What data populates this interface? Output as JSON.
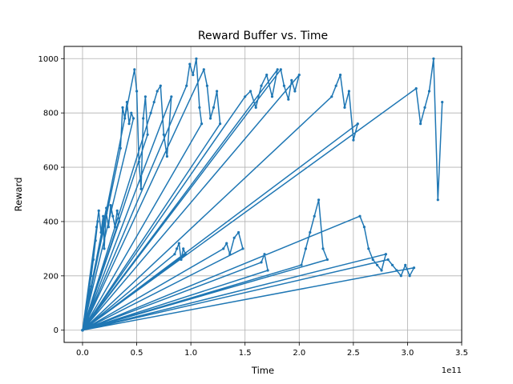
{
  "chart_data": {
    "type": "line",
    "title": "Reward Buffer vs. Time",
    "xlabel": "Time",
    "ylabel": "Reward",
    "x_offset_label": "1e11",
    "xlim": [
      -0.17,
      3.5
    ],
    "ylim": [
      -45,
      1045
    ],
    "xticks": [
      0.0,
      0.5,
      1.0,
      1.5,
      2.0,
      2.5,
      3.0,
      3.5
    ],
    "xtick_labels": [
      "0.0",
      "0.5",
      "1.0",
      "1.5",
      "2.0",
      "2.5",
      "3.0",
      "3.5"
    ],
    "yticks": [
      0,
      200,
      400,
      600,
      800,
      1000
    ],
    "ytick_labels": [
      "0",
      "200",
      "400",
      "600",
      "800",
      "1000"
    ],
    "grid": true,
    "line_color": "#1f77b4",
    "series": [
      {
        "x": [
          0.0,
          0.02,
          0.03,
          0.05,
          0.06,
          0.08,
          0.0,
          0.08,
          0.1,
          0.12,
          0.14,
          0.0,
          0.13,
          0.15,
          0.17,
          0.19,
          0.2,
          0.22,
          0.0,
          0.22,
          0.24,
          0.26,
          0.28,
          0.3,
          0.32,
          0.34,
          0.0,
          0.35,
          0.37,
          0.39,
          0.41,
          0.43,
          0.45,
          0.47,
          0.0,
          0.48,
          0.5,
          0.52,
          0.54,
          0.56,
          0.58,
          0.6,
          0.0,
          0.63,
          0.66,
          0.69,
          0.72,
          0.75,
          0.78,
          0.82,
          0.0,
          0.85,
          0.87,
          0.89,
          0.91,
          0.93,
          0.95,
          0.0,
          0.96,
          0.99,
          1.02,
          1.05,
          1.08,
          1.1,
          0.0,
          1.12,
          1.15,
          1.18,
          1.21,
          1.24,
          1.27,
          0.0,
          1.3,
          1.33,
          1.36,
          1.4,
          1.44,
          1.48,
          0.0,
          1.5,
          1.55,
          1.6,
          1.65,
          1.7,
          1.75,
          1.8,
          0.0,
          1.65,
          1.68,
          1.71,
          0.0,
          1.83,
          1.86,
          1.9,
          1.93,
          1.96,
          2.0,
          0.0,
          2.02,
          2.06,
          2.1,
          2.14,
          2.18,
          2.22,
          2.26,
          0.0,
          2.3,
          2.34,
          2.38,
          2.42,
          2.46,
          2.5,
          2.54,
          0.0,
          2.56,
          2.6,
          2.64,
          2.68,
          2.72,
          2.76,
          2.8,
          0.0,
          2.82,
          2.86,
          2.9,
          2.94,
          2.98,
          3.02,
          3.06,
          0.0,
          3.08,
          3.12,
          3.16,
          3.2,
          3.24,
          3.28,
          3.32
        ],
        "y": [
          0,
          40,
          70,
          100,
          140,
          160,
          0,
          200,
          260,
          330,
          400,
          0,
          380,
          440,
          360,
          420,
          300,
          450,
          0,
          430,
          380,
          460,
          420,
          380,
          440,
          400,
          0,
          670,
          820,
          780,
          840,
          760,
          800,
          780,
          0,
          960,
          880,
          620,
          520,
          780,
          860,
          720,
          0,
          800,
          840,
          880,
          900,
          720,
          640,
          860,
          0,
          280,
          300,
          320,
          260,
          300,
          280,
          0,
          900,
          980,
          940,
          1000,
          820,
          760,
          0,
          960,
          900,
          780,
          820,
          880,
          760,
          0,
          300,
          320,
          280,
          340,
          360,
          300,
          0,
          860,
          880,
          820,
          900,
          940,
          860,
          960,
          0,
          250,
          280,
          220,
          0,
          960,
          900,
          850,
          920,
          880,
          940,
          0,
          240,
          300,
          360,
          420,
          480,
          300,
          260,
          0,
          860,
          900,
          940,
          820,
          880,
          700,
          760,
          0,
          420,
          380,
          300,
          260,
          240,
          220,
          280,
          0,
          260,
          240,
          220,
          200,
          240,
          200,
          230,
          0,
          890,
          760,
          820,
          880,
          1000,
          480,
          840
        ]
      }
    ]
  }
}
